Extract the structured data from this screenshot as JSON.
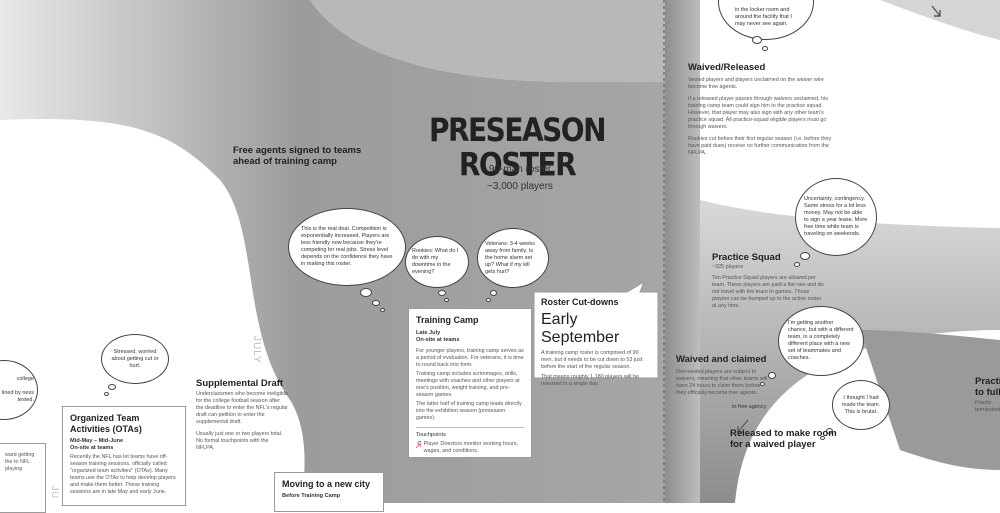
{
  "main": {
    "title": "PRESEASON ROSTER",
    "roster_size": "90-man roster",
    "players": "~3,000 players"
  },
  "side_labels": {
    "free_agents": "Free agents signed to teams ahead of training camp",
    "july": "JULY"
  },
  "thoughts": {
    "real_deal": "This is the real deal. Competition is exponentially increased. Players are less friendly now because they're competing for real jobs. Stress level depends on the confidence they have in making this roster.",
    "rookies": "Rookies: What do I do with my downtime in the evening?",
    "veterans": "Veterans: 3-4 weeks away from family. Is the home alarm set up? What if my kill gets hurt?",
    "stressed": "Stressed, worried about getting cut or hurt.",
    "uncertainty": "Uncertainty, contingency. Same stress for a lot less money. May not be able to sign a year lease. More free time while team is traveling on weekends.",
    "another_chance": "I'm getting another chance, but with a different team, in a completely different place with a new set of teammates and coaches.",
    "brutal": "I thought I had made the team. This is brutal.",
    "top_right": "in the locker room and around the facility that I may never see again.",
    "left_partial_1": "college",
    "left_partial_2": "lined by ness tested.",
    "left_partial_3": "ward getting the to NFL playing"
  },
  "waived_released": {
    "heading": "Waived/Released",
    "p1": "Vested players and players unclaimed on the waiver wire become free agents.",
    "p2": "If a released player passes through waivers unclaimed, his training camp team could sign him to the practice squad. However, that player may also sign with any other team's practice squad. All practice-squad eligible players must go through waivers.",
    "p3": "Rookies cut before their first regular season (i.e. before they have paid dues) receive no further communication from the NFLPA."
  },
  "practice_squad": {
    "heading": "Practice Squad",
    "count": "~325 players",
    "p1": "Ten Practice Squad players are allowed per team. These players are paid a flat rate and do not travel with the team to games. Those players can be bumped up to the active roster at any time."
  },
  "waived_claimed": {
    "heading": "Waived and claimed",
    "p1": "Non-vested players are subject to waivers, meaning that other teams will have 24 hours to claim them before they officially become free agents."
  },
  "free_agency_label": "to free agency",
  "released_heading": "Released to make room for a waived player",
  "practice_partial": {
    "heading": "Practi to full",
    "p1": "Practic terminated"
  },
  "supplemental": {
    "heading": "Supplemental Draft",
    "p1": "Underclassmen who become ineligible for the college football season after the deadline to enter the NFL's regular draft can petition to enter the supplemental draft.",
    "p2": "Usually just one or two players total. No formal touchpoints with the NFLPA."
  },
  "otas": {
    "heading": "Organized Team Activities (OTAs)",
    "dates": "Mid-May – Mid-June",
    "where": "On-site at teams",
    "p1": "Recently the NFL has let teams have off-season training sessions, officially called \"organized team activities\" (OTAs). Many teams use the OTAs to help develop players and make them better. These training sessions are in late May and early June."
  },
  "training_camp": {
    "heading": "Training Camp",
    "dates": "Late July",
    "where": "On-site at teams",
    "p1": "For younger players, training camp serves as a period of evaluation. For veterans, it is time to round back into form.",
    "p2": "Training camp includes scrimmages, drills, meetings with coaches and other players at one's position, weight training, and pre-season games.",
    "p3": "The latter half of training camp leads directly into the exhibition season (preseason games).",
    "touch_label": "Touchpoints",
    "touch_text": "Player Directors monitor working hours, wages, and conditions."
  },
  "cutdowns": {
    "heading": "Roster Cut-downs",
    "dates": "Early September",
    "p1": "A training camp roster is comprised of 90 men, but it needs to be cut down to 53 just before the start of the regular season.",
    "p2": "That means roughly 1,180 players will be released in a single day."
  },
  "new_city": {
    "heading": "Moving to a new city",
    "sub": "Before Training Camp"
  },
  "colors": {
    "gray_band": "#a8a8a8",
    "dark_gray": "#8a8a8a",
    "text": "#222222"
  }
}
